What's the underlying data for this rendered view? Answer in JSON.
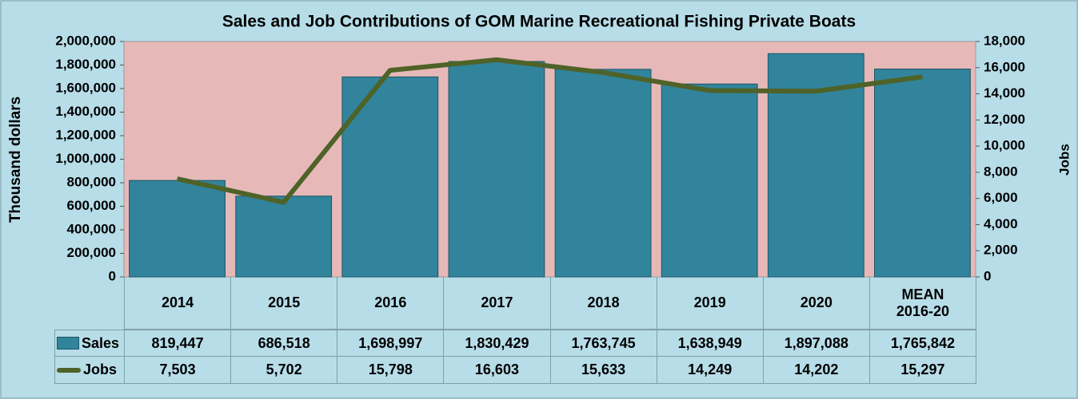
{
  "chart_data": {
    "type": "bar-line-table",
    "title": "Sales and Job Contributions of GOM Marine Recreational Fishing Private Boats",
    "y_label": "Thousand dollars",
    "y2_label": "Jobs",
    "categories": [
      "2014",
      "2015",
      "2016",
      "2017",
      "2018",
      "2019",
      "2020",
      "MEAN 2016-20"
    ],
    "series": [
      {
        "name": "Sales",
        "type": "bar",
        "color": "#31849b",
        "values": [
          819447,
          686518,
          1698997,
          1830429,
          1763745,
          1638949,
          1897088,
          1765842
        ],
        "value_labels": [
          "819,447",
          "686,518",
          "1,698,997",
          "1,830,429",
          "1,763,745",
          "1,638,949",
          "1,897,088",
          "1,765,842"
        ]
      },
      {
        "name": "Jobs",
        "type": "line",
        "axis": "y2",
        "color": "#4f6228",
        "values": [
          7503,
          5702,
          15798,
          16603,
          15633,
          14249,
          14202,
          15297
        ],
        "value_labels": [
          "7,503",
          "5,702",
          "15,798",
          "16,603",
          "15,633",
          "14,249",
          "14,202",
          "15,297"
        ]
      }
    ],
    "ylim": [
      0,
      2000000
    ],
    "yticks": [
      0,
      {
        "value": 200000,
        "label": "200,000"
      },
      {
        "value": 400000,
        "label": "400,000"
      },
      {
        "value": 600000,
        "label": "600,000"
      },
      {
        "value": 800000,
        "label": "800,000"
      },
      {
        "value": 1000000,
        "label": "1,000,000"
      },
      {
        "value": 1200000,
        "label": "1,200,000"
      },
      {
        "value": 1400000,
        "label": "1,400,000"
      },
      {
        "value": 1600000,
        "label": "1,600,000"
      },
      {
        "value": 1800000,
        "label": "1,800,000"
      },
      {
        "value": 2000000,
        "label": "2,000,000"
      }
    ],
    "y2lim": [
      0,
      18000
    ],
    "y2ticks": [
      0,
      {
        "value": 2000,
        "label": "2,000"
      },
      {
        "value": 4000,
        "label": "4,000"
      },
      {
        "value": 6000,
        "label": "6,000"
      },
      {
        "value": 8000,
        "label": "8,000"
      },
      {
        "value": 10000,
        "label": "10,000"
      },
      {
        "value": 12000,
        "label": "12,000"
      },
      {
        "value": 14000,
        "label": "14,000"
      },
      {
        "value": 16000,
        "label": "16,000"
      },
      {
        "value": 18000,
        "label": "18,000"
      }
    ],
    "plot_background": "#e6b9b8"
  }
}
